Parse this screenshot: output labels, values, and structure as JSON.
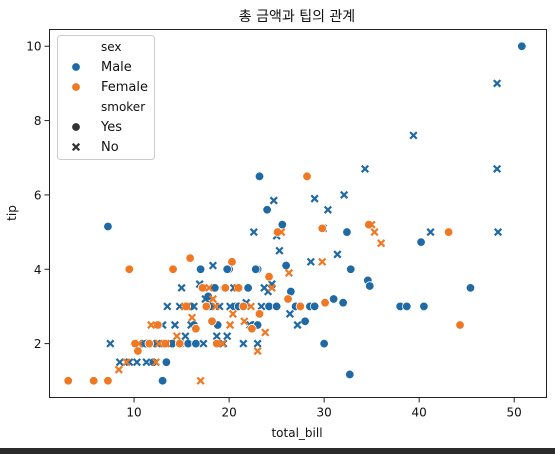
{
  "chart_data": {
    "type": "scatter",
    "title": "총 금액과 팁의 관계",
    "xlabel": "total_bill",
    "ylabel": "tip",
    "xlim": [
      1.1,
      53.4
    ],
    "ylim": [
      0.55,
      10.45
    ],
    "xticks": [
      10,
      20,
      30,
      40,
      50
    ],
    "yticks": [
      2,
      4,
      6,
      8,
      10
    ],
    "grid": false,
    "legend": {
      "placement": "top-left",
      "hue_title": "sex",
      "style_title": "smoker",
      "entries": [
        {
          "kind": "title",
          "label": "sex"
        },
        {
          "kind": "hue",
          "label": "Male",
          "color": "#1f6aa5",
          "marker": "circle"
        },
        {
          "kind": "hue",
          "label": "Female",
          "color": "#f07823",
          "marker": "circle"
        },
        {
          "kind": "title",
          "label": "smoker"
        },
        {
          "kind": "style",
          "label": "Yes",
          "color": "#333333",
          "marker": "circle"
        },
        {
          "kind": "style",
          "label": "No",
          "color": "#333333",
          "marker": "x"
        }
      ]
    },
    "colors": {
      "Male": "#1f6aa5",
      "Female": "#f07823"
    },
    "series": [
      {
        "name": "Male",
        "hue": "Male",
        "marker": "circle",
        "x": [
          7.25,
          11.24,
          12.03,
          12.95,
          13.4,
          14.0,
          15.0,
          15.69,
          16.0,
          16.5,
          17.0,
          18.0,
          18.8,
          19.5,
          20.0,
          20.7,
          21.0,
          22.0,
          22.5,
          23.0,
          23.0,
          23.2,
          24.0,
          24.2,
          25.0,
          25.6,
          26.0,
          26.5,
          27.0,
          28.0,
          28.5,
          29.0,
          30.0,
          31.0,
          32.0,
          32.4,
          32.7,
          32.8,
          34.6,
          34.8,
          38.0,
          38.7,
          40.2,
          40.5,
          45.4,
          50.8,
          13.0,
          18.5,
          22.8,
          16.3,
          19.8,
          17.8
        ],
        "y": [
          5.15,
          2.0,
          1.5,
          2.0,
          1.5,
          2.0,
          2.0,
          2.0,
          3.0,
          2.0,
          4.0,
          3.0,
          2.5,
          3.5,
          4.0,
          3.0,
          3.0,
          3.5,
          2.5,
          2.5,
          4.0,
          6.5,
          5.6,
          3.0,
          3.0,
          5.2,
          4.1,
          3.4,
          3.0,
          2.6,
          3.0,
          3.0,
          2.0,
          3.2,
          3.1,
          5.0,
          1.17,
          4.0,
          3.7,
          3.55,
          3.0,
          3.0,
          4.73,
          3.0,
          3.5,
          10.0,
          1.0,
          3.5,
          4.0,
          2.5,
          4.0,
          3.27
        ]
      },
      {
        "name": "Male",
        "hue": "Male",
        "marker": "x",
        "x": [
          7.5,
          8.5,
          9.5,
          10.3,
          10.6,
          11.0,
          11.3,
          12.0,
          12.4,
          13.0,
          13.5,
          13.9,
          14.3,
          14.8,
          15.0,
          15.4,
          16.0,
          16.3,
          16.9,
          17.3,
          17.5,
          18.0,
          18.3,
          18.7,
          19.0,
          19.4,
          19.8,
          20.1,
          20.5,
          20.9,
          21.2,
          21.5,
          21.8,
          22.2,
          22.6,
          23.0,
          23.4,
          23.7,
          24.1,
          24.5,
          25.0,
          25.3,
          26.4,
          27.2,
          28.6,
          29.0,
          29.9,
          30.4,
          31.4,
          32.1,
          34.3,
          39.4,
          41.2,
          48.2,
          48.2,
          48.3,
          24.7
        ],
        "y": [
          2.0,
          1.5,
          1.5,
          1.5,
          2.0,
          2.0,
          1.5,
          2.0,
          2.0,
          2.5,
          3.0,
          2.0,
          2.5,
          3.0,
          3.5,
          2.2,
          2.5,
          3.0,
          3.6,
          2.0,
          3.2,
          3.0,
          4.1,
          2.2,
          3.0,
          2.0,
          2.2,
          3.0,
          3.5,
          3.5,
          3.0,
          2.0,
          3.1,
          2.5,
          5.0,
          2.0,
          3.0,
          3.5,
          3.4,
          3.6,
          4.9,
          4.5,
          2.8,
          2.5,
          4.2,
          5.9,
          5.1,
          5.6,
          4.4,
          6.0,
          6.7,
          7.6,
          5.0,
          9.0,
          6.7,
          5.0,
          5.85
        ]
      },
      {
        "name": "Female",
        "hue": "Female",
        "marker": "circle",
        "x": [
          3.07,
          5.75,
          7.25,
          9.5,
          10.1,
          10.4,
          11.6,
          12.5,
          13.3,
          14.1,
          14.8,
          15.5,
          15.9,
          16.5,
          17.2,
          17.6,
          18.2,
          18.7,
          19.6,
          20.3,
          21.0,
          21.5,
          22.4,
          23.2,
          24.2,
          25.1,
          26.2,
          27.5,
          28.2,
          29.8,
          30.1,
          34.7,
          43.1,
          44.3
        ],
        "y": [
          1.0,
          1.0,
          1.0,
          4.0,
          2.0,
          1.8,
          2.0,
          2.5,
          2.0,
          4.0,
          2.0,
          3.0,
          4.3,
          2.4,
          3.5,
          3.0,
          2.6,
          2.0,
          3.5,
          4.2,
          3.5,
          3.0,
          2.4,
          2.8,
          3.8,
          5.0,
          3.2,
          3.0,
          6.5,
          5.1,
          3.1,
          5.2,
          5.0,
          2.5
        ]
      },
      {
        "name": "Female",
        "hue": "Female",
        "marker": "x",
        "x": [
          8.4,
          9.2,
          10.5,
          11.8,
          12.6,
          13.4,
          14.5,
          15.3,
          16.1,
          17.0,
          17.9,
          18.6,
          19.3,
          20.1,
          20.8,
          21.6,
          22.3,
          23.0,
          23.8,
          24.5,
          25.5,
          26.3,
          29.8,
          35.0,
          35.3,
          36.0,
          12.3,
          15.6,
          18.3,
          20.4
        ],
        "y": [
          1.3,
          1.5,
          2.0,
          2.5,
          2.0,
          2.0,
          2.2,
          3.0,
          2.7,
          1.0,
          3.5,
          3.0,
          2.0,
          2.5,
          3.5,
          2.6,
          3.0,
          1.8,
          2.3,
          3.5,
          5.0,
          3.9,
          4.2,
          5.2,
          5.0,
          4.7,
          1.5,
          3.0,
          3.2,
          2.8
        ]
      }
    ]
  }
}
